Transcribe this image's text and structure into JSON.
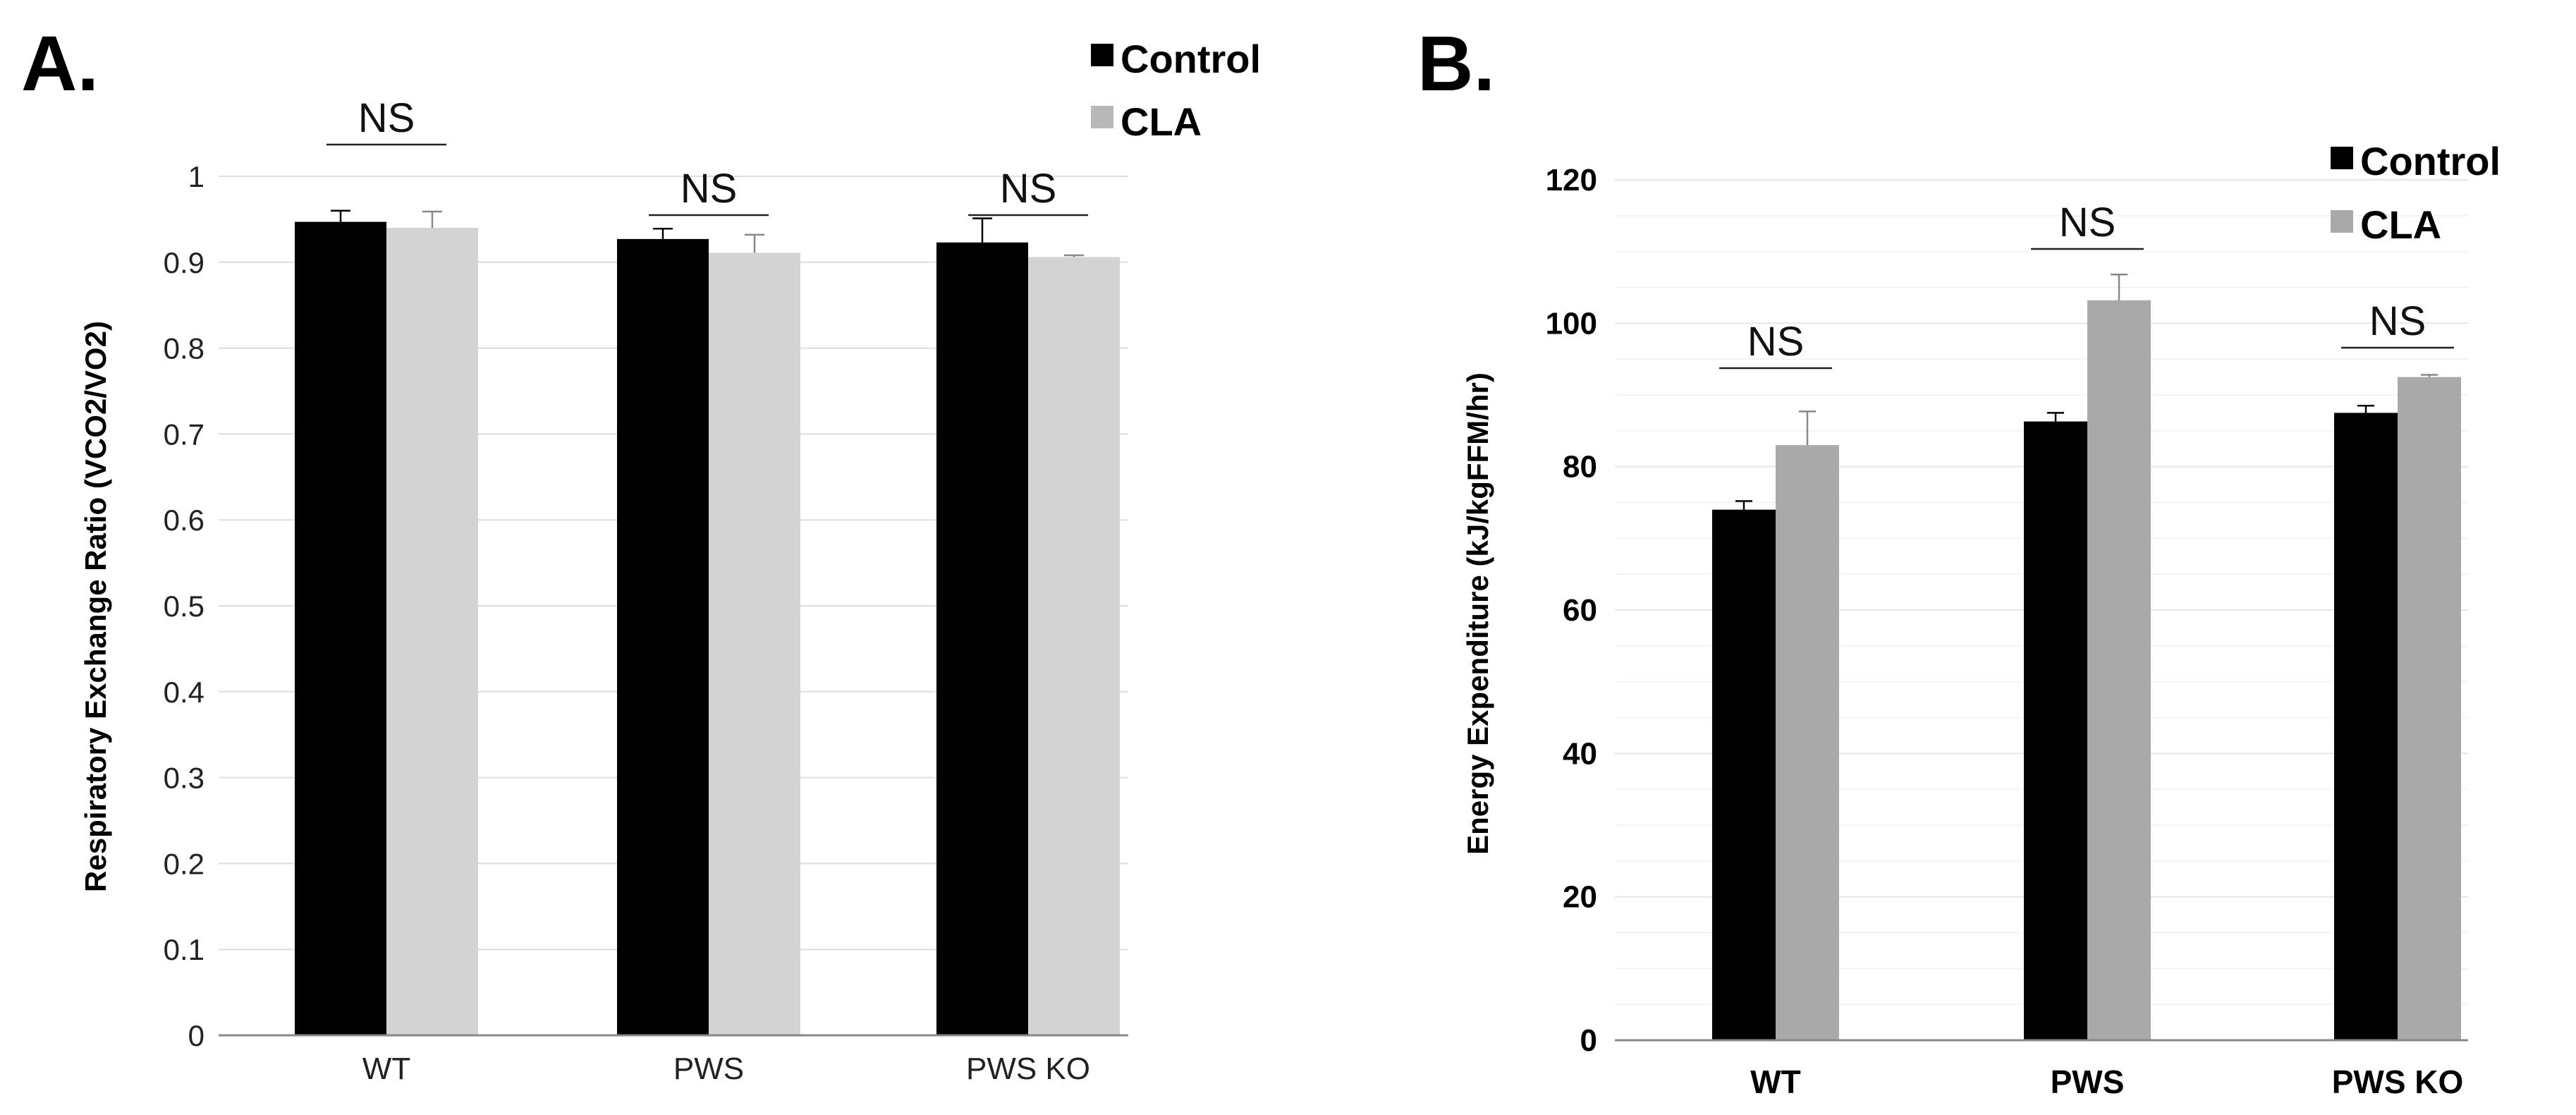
{
  "chart_data": [
    {
      "panel": "A.",
      "type": "bar",
      "categories": [
        "WT",
        "PWS",
        "PWS KO"
      ],
      "series": [
        {
          "name": "Control",
          "color": "#000000",
          "values": [
            0.947,
            0.927,
            0.923
          ],
          "errors": [
            0.013,
            0.012,
            0.028
          ]
        },
        {
          "name": "CLA",
          "color": "#d3d3d3",
          "values": [
            0.94,
            0.911,
            0.906
          ],
          "errors": [
            0.019,
            0.021,
            0.002
          ]
        }
      ],
      "significance": [
        "NS",
        "NS",
        "NS"
      ],
      "ylabel": "Respiratory Exchange Ratio (VCO2/VO2)",
      "xlabel": "",
      "ylim": [
        0,
        1
      ],
      "yticks": [
        "0",
        "0.1",
        "0.2",
        "0.3",
        "0.4",
        "0.5",
        "0.6",
        "0.7",
        "0.8",
        "0.9",
        "1"
      ],
      "grid": true,
      "legend_position": "top-right"
    },
    {
      "panel": "B.",
      "type": "bar",
      "categories": [
        "WT",
        "PWS",
        "PWS KO"
      ],
      "series": [
        {
          "name": "Control",
          "color": "#000000",
          "values": [
            74,
            86.3,
            87.5
          ],
          "errors": [
            1.2,
            1.2,
            1.0
          ]
        },
        {
          "name": "CLA",
          "color": "#a9a9a9",
          "values": [
            83,
            103.2,
            92.5
          ],
          "errors": [
            4.7,
            3.6,
            0.3
          ]
        }
      ],
      "significance": [
        "NS",
        "NS",
        "NS"
      ],
      "ylabel": "Energy Expenditure (kJ/kgFFM/hr)",
      "xlabel": "",
      "ylim": [
        0,
        120
      ],
      "yticks": [
        "0",
        "20",
        "40",
        "60",
        "80",
        "100",
        "120"
      ],
      "grid": true,
      "legend_position": "top-right"
    }
  ]
}
